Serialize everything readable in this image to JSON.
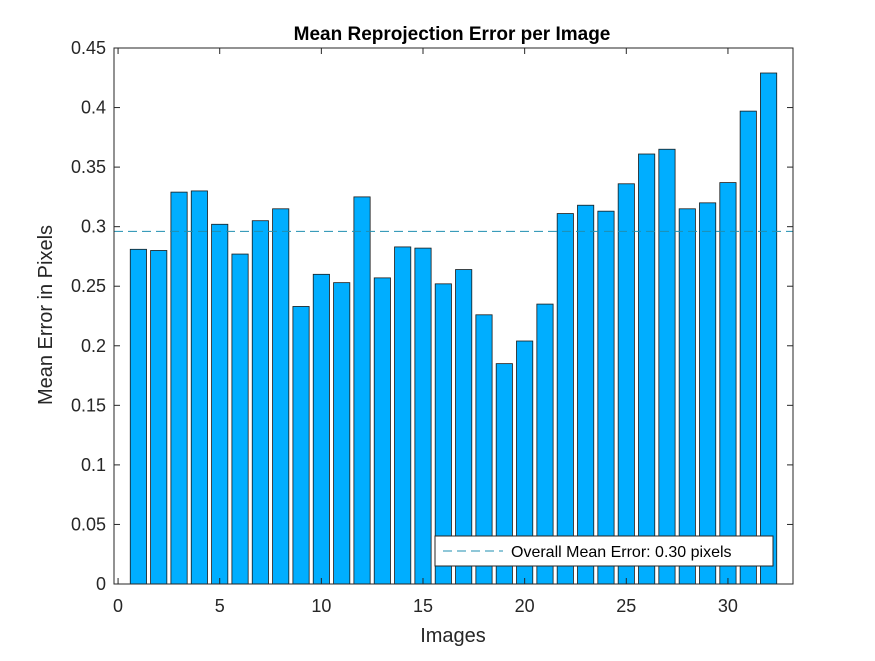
{
  "chart_data": {
    "type": "bar",
    "title": "Mean Reprojection Error per Image",
    "xlabel": "Images",
    "ylabel": "Mean Error in Pixels",
    "x": [
      1,
      2,
      3,
      4,
      5,
      6,
      7,
      8,
      9,
      10,
      11,
      12,
      13,
      14,
      15,
      16,
      17,
      18,
      19,
      20,
      21,
      22,
      23,
      24,
      25,
      26,
      27,
      28,
      29,
      30,
      31,
      32
    ],
    "values": [
      0.281,
      0.28,
      0.329,
      0.33,
      0.302,
      0.277,
      0.305,
      0.315,
      0.233,
      0.26,
      0.253,
      0.325,
      0.257,
      0.283,
      0.282,
      0.252,
      0.264,
      0.226,
      0.185,
      0.204,
      0.235,
      0.311,
      0.318,
      0.313,
      0.336,
      0.361,
      0.365,
      0.315,
      0.32,
      0.337,
      0.397,
      0.429
    ],
    "xlim": [
      -0.2,
      33.2
    ],
    "ylim": [
      0,
      0.45
    ],
    "xticks": [
      0,
      5,
      10,
      15,
      20,
      25,
      30
    ],
    "yticks": [
      0,
      0.05,
      0.1,
      0.15,
      0.2,
      0.25,
      0.3,
      0.35,
      0.4,
      0.45
    ],
    "ytick_labels": [
      "0",
      "0.05",
      "0.1",
      "0.15",
      "0.2",
      "0.25",
      "0.3",
      "0.35",
      "0.4",
      "0.45"
    ],
    "mean_line": 0.296,
    "legend": {
      "label": "Overall Mean Error: 0.30 pixels",
      "position": "bottom-right"
    },
    "grid": false,
    "colors": {
      "bar_fill": "#00AEFF",
      "bar_edge": "#1a1a1a",
      "mean_line": "#1f8fb0",
      "axis": "#262626",
      "text": "#262626"
    }
  }
}
